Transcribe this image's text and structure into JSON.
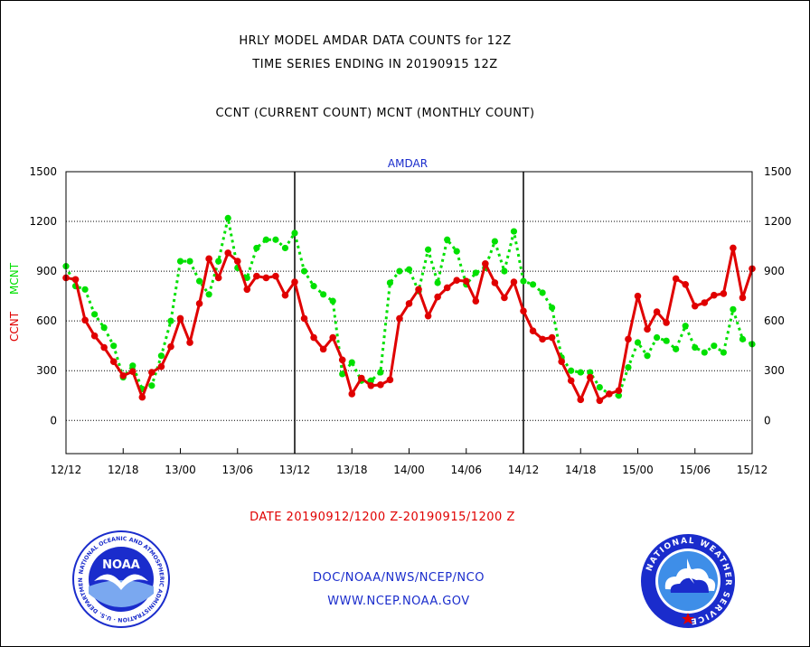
{
  "header": {
    "title_line1": "HRLY MODEL AMDAR DATA COUNTS for 12Z",
    "title_line2": "TIME SERIES ENDING IN 20190915 12Z",
    "subtitle": "CCNT (CURRENT COUNT) MCNT (MONTHLY COUNT)"
  },
  "footer": {
    "date_range": "DATE 20190912/1200 Z-20190915/1200 Z",
    "org": "DOC/NOAA/NWS/NCEP/NCO",
    "url": "WWW.NCEP.NOAA.GOV"
  },
  "logos": {
    "left": "noaa-logo",
    "left_text": "NOAA",
    "left_ring_text": "NATIONAL OCEANIC AND ATMOSPHERIC ADMINISTRATION · U.S. DEPARTMENT OF COMMERCE",
    "right": "national-weather-service-logo",
    "right_ring_text": "NATIONAL WEATHER SERVICE"
  },
  "colors": {
    "ccnt": "#e00000",
    "mcnt": "#00e000",
    "panel_title": "#1a2ccc",
    "grid": "#000000"
  },
  "chart_data": {
    "type": "line",
    "panel_title": "AMDAR",
    "ylabel_ccnt": "CCNT",
    "ylabel_mcnt": "MCNT",
    "ylim": [
      -200,
      1500
    ],
    "yticks": [
      0,
      300,
      600,
      900,
      1200,
      1500
    ],
    "x_tick_labels": [
      "12/12",
      "12/18",
      "13/00",
      "13/06",
      "13/12",
      "13/18",
      "14/00",
      "14/06",
      "14/12",
      "14/18",
      "15/00",
      "15/06",
      "15/12"
    ],
    "x_tick_hours": [
      0,
      6,
      12,
      18,
      24,
      30,
      36,
      42,
      48,
      54,
      60,
      66,
      72
    ],
    "day_boundaries_hours": [
      24,
      48
    ],
    "grid": "horizontal-dotted",
    "series": [
      {
        "name": "CCNT",
        "style": "solid",
        "color": "#e00000",
        "values": [
          860,
          850,
          605,
          510,
          440,
          355,
          270,
          295,
          140,
          290,
          325,
          445,
          615,
          470,
          705,
          975,
          860,
          1010,
          960,
          790,
          870,
          860,
          870,
          755,
          835,
          615,
          500,
          430,
          500,
          365,
          160,
          255,
          210,
          215,
          245,
          615,
          705,
          790,
          630,
          745,
          800,
          845,
          840,
          720,
          945,
          830,
          740,
          835,
          660,
          540,
          490,
          500,
          355,
          240,
          125,
          260,
          120,
          160,
          180,
          490,
          750,
          550,
          655,
          590,
          855,
          820,
          690,
          710,
          755,
          765,
          1040,
          740,
          915
        ]
      },
      {
        "name": "MCNT",
        "style": "dotted",
        "color": "#00e000",
        "values": [
          930,
          810,
          790,
          640,
          560,
          450,
          260,
          330,
          190,
          210,
          390,
          600,
          960,
          960,
          840,
          760,
          960,
          1220,
          920,
          860,
          1040,
          1090,
          1090,
          1040,
          1130,
          900,
          810,
          760,
          720,
          280,
          350,
          240,
          240,
          290,
          830,
          900,
          910,
          780,
          1030,
          830,
          1090,
          1020,
          820,
          890,
          920,
          1080,
          900,
          1140,
          840,
          820,
          770,
          680,
          380,
          300,
          290,
          290,
          200,
          160,
          150,
          320,
          470,
          390,
          500,
          480,
          430,
          570,
          440,
          410,
          450,
          410,
          670,
          490,
          460
        ]
      }
    ]
  }
}
